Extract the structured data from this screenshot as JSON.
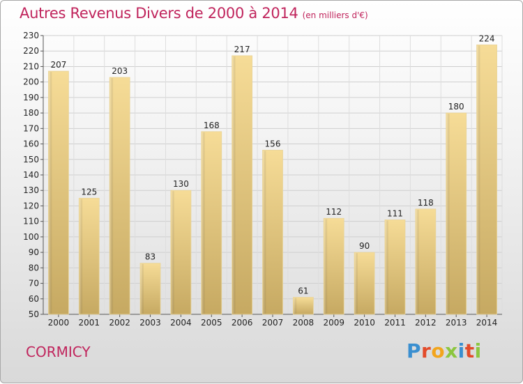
{
  "header": {
    "title": "Autres Revenus Divers de 2000 à 2014",
    "unit_note": "(en milliers d'€)"
  },
  "footer": {
    "town": "CORMICY",
    "brand": "Proxiti"
  },
  "colors": {
    "title": "#c0245c",
    "bar_light": "#f5dc9a",
    "bar_dark": "#c9ad64"
  },
  "chart_data": {
    "type": "bar",
    "title": "Autres Revenus Divers de 2000 à 2014",
    "subtitle": "(en milliers d'€)",
    "xlabel": "",
    "ylabel": "",
    "categories": [
      "2000",
      "2001",
      "2002",
      "2003",
      "2004",
      "2005",
      "2006",
      "2007",
      "2008",
      "2009",
      "2010",
      "2011",
      "2012",
      "2013",
      "2014"
    ],
    "values": [
      207,
      125,
      203,
      83,
      130,
      168,
      217,
      156,
      61,
      112,
      90,
      111,
      118,
      180,
      224
    ],
    "ylim": [
      50,
      230
    ],
    "yticks": [
      50,
      60,
      70,
      80,
      90,
      100,
      110,
      120,
      130,
      140,
      150,
      160,
      170,
      180,
      190,
      200,
      210,
      220,
      230
    ],
    "grid": true,
    "legend": "none"
  }
}
